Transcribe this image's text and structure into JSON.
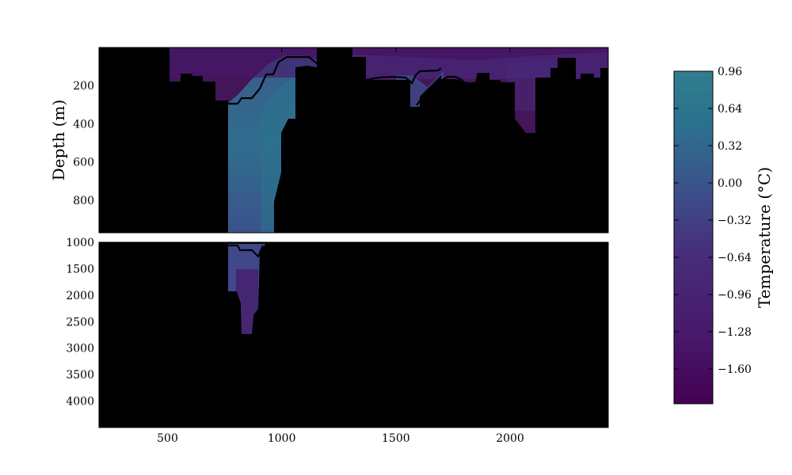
{
  "chart_data": {
    "type": "heatmap",
    "ylabel": "Depth (m)",
    "xlim": [
      200,
      2430
    ],
    "x_ticks": [
      "500",
      "1000",
      "1500",
      "2000"
    ],
    "x_tick_values": [
      500,
      1000,
      1500,
      2000
    ],
    "top_panel": {
      "ylim": [
        0,
        970
      ],
      "y_ticks": [
        "200",
        "400",
        "600",
        "800"
      ],
      "y_tick_values": [
        200,
        400,
        600,
        800
      ]
    },
    "bottom_panel": {
      "ylim": [
        1000,
        4500
      ],
      "y_ticks": [
        "1000",
        "1500",
        "2000",
        "2500",
        "3000",
        "3500",
        "4000"
      ],
      "y_tick_values": [
        1000,
        1500,
        2000,
        2500,
        3000,
        3500,
        4000
      ]
    },
    "colorbar": {
      "label": "Temperature (°C)",
      "range": [
        -1.9,
        0.96
      ],
      "ticks": [
        "0.96",
        "0.64",
        "0.32",
        "0.00",
        "−0.32",
        "−0.64",
        "−0.96",
        "−1.28",
        "−1.60"
      ],
      "tick_values": [
        0.96,
        0.64,
        0.32,
        0.0,
        -0.32,
        -0.64,
        -0.96,
        -1.28,
        -1.6
      ],
      "colormap": [
        "#440154",
        "#46337f",
        "#3b528b",
        "#2c728e",
        "#2f7e8e"
      ]
    },
    "colors": {
      "land_mask": "#000000",
      "isotherm": "#000000"
    }
  }
}
